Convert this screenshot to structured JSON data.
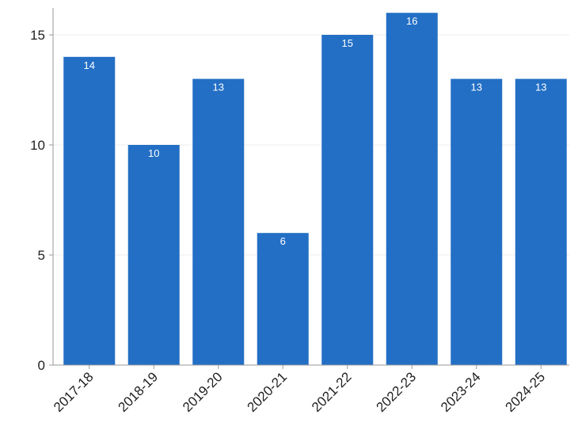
{
  "chart_data": {
    "type": "bar",
    "categories": [
      "2017-18",
      "2018-19",
      "2019-20",
      "2020-21",
      "2021-22",
      "2022-23",
      "2023-24",
      "2024-25"
    ],
    "values": [
      14,
      10,
      13,
      6,
      15,
      16,
      13,
      13
    ],
    "data_labels": [
      "14",
      "10",
      "13",
      "6",
      "15",
      "16",
      "13",
      "13"
    ],
    "y_ticks": [
      {
        "value": 0,
        "label": "0"
      },
      {
        "value": 5,
        "label": "5"
      },
      {
        "value": 10,
        "label": "10"
      },
      {
        "value": 15,
        "label": "15"
      }
    ],
    "ylim": [
      0,
      16
    ],
    "grid": true,
    "legend": "none",
    "bar_color": "#236fc5",
    "gridline_color": "#ececec"
  }
}
